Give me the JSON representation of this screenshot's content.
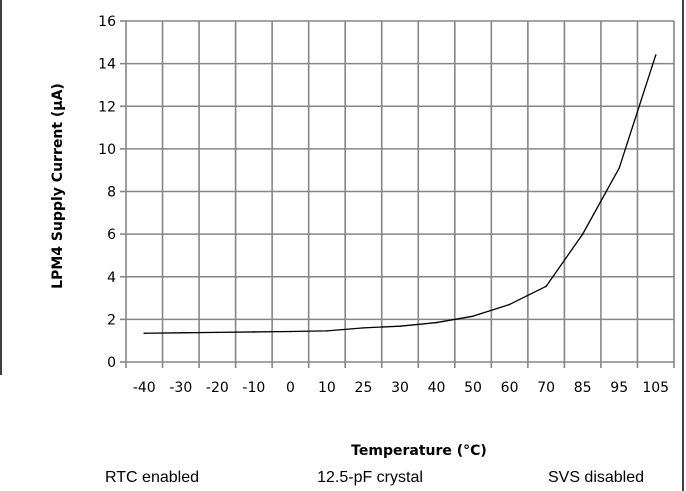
{
  "chart_data": {
    "type": "line",
    "xlabel": "Temperature (°C)",
    "ylabel": "LPM4 Supply Current (µA)",
    "categories": [
      "-40",
      "-30",
      "-20",
      "-10",
      "0",
      "10",
      "25",
      "30",
      "40",
      "50",
      "60",
      "70",
      "85",
      "95",
      "105"
    ],
    "ylim": [
      0,
      16
    ],
    "yticks": [
      0,
      2,
      4,
      6,
      8,
      10,
      12,
      14,
      16
    ],
    "grid": true,
    "series": [
      {
        "color": "#000000",
        "values": [
          1.35,
          1.37,
          1.39,
          1.41,
          1.43,
          1.46,
          1.6,
          1.68,
          1.85,
          2.15,
          2.7,
          3.55,
          6.0,
          9.1,
          14.4
        ]
      }
    ]
  },
  "annotations": {
    "rtc": "RTC enabled",
    "crystal": "12.5-pF crystal",
    "svs": "SVS disabled"
  }
}
